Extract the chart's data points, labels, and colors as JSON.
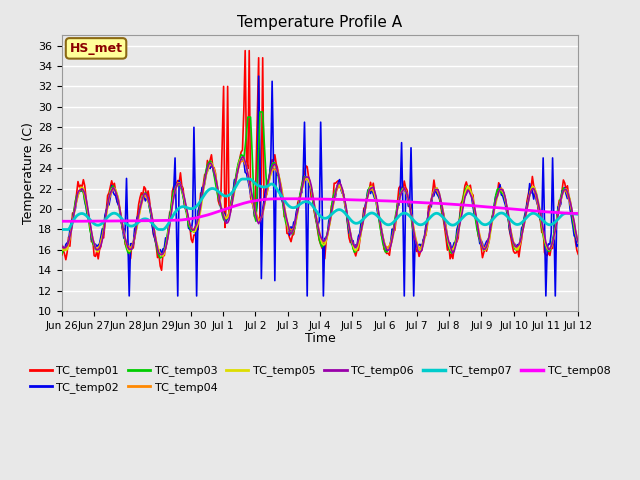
{
  "title": "Temperature Profile A",
  "xlabel": "Time",
  "ylabel": "Temperature (C)",
  "ylim": [
    10,
    37
  ],
  "yticks": [
    10,
    12,
    14,
    16,
    18,
    20,
    22,
    24,
    26,
    28,
    30,
    32,
    34,
    36
  ],
  "annotation_text": "HS_met",
  "annotation_color": "#8B0000",
  "annotation_bg": "#FFFF99",
  "annotation_border": "#8B6914",
  "series_colors": {
    "TC_temp01": "#FF0000",
    "TC_temp02": "#0000EE",
    "TC_temp03": "#00CC00",
    "TC_temp04": "#FF8800",
    "TC_temp05": "#DDDD00",
    "TC_temp06": "#9900AA",
    "TC_temp07": "#00CCCC",
    "TC_temp08": "#FF00FF"
  },
  "bg_color": "#E8E8E8",
  "plot_bg": "#E8E8E8",
  "grid_color": "#FFFFFF"
}
